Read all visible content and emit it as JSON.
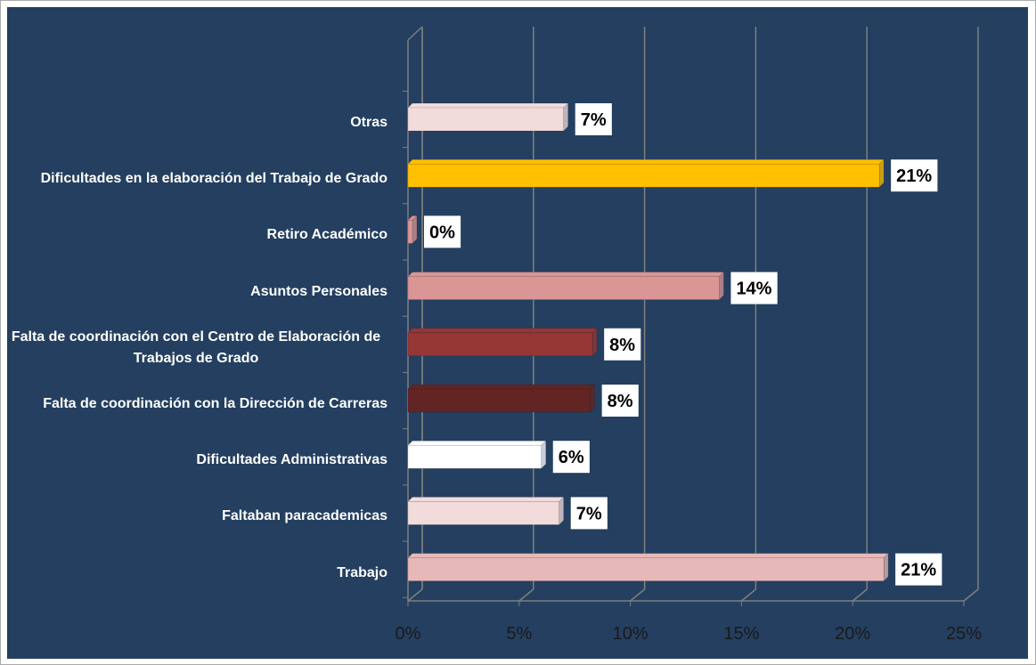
{
  "chart_data": {
    "type": "bar",
    "orientation": "horizontal",
    "categories": [
      "Otras",
      "Dificultades en la elaboración del Trabajo de Grado",
      "Retiro Académico",
      "Asuntos Personales",
      "Falta de coordinación con el Centro de Elaboración de Trabajos de Grado",
      "Falta de coordinación con la Dirección de Carreras",
      "Dificultades Administrativas",
      "Faltaban paracademicas",
      "Trabajo"
    ],
    "values": [
      7,
      21.2,
      0.2,
      14,
      8.3,
      8.2,
      6,
      6.8,
      21.4
    ],
    "value_labels": [
      "7%",
      "21%",
      "0%",
      "14%",
      "8%",
      "8%",
      "6%",
      "7%",
      "21%"
    ],
    "colors": [
      "#f2dcdb",
      "#ffc000",
      "#d99694",
      "#d99694",
      "#953735",
      "#632523",
      "#ffffff",
      "#f2dcdb",
      "#e6b9b8"
    ],
    "xlim": [
      0,
      25
    ],
    "xticks": [
      {
        "value": 0,
        "label": "0%"
      },
      {
        "value": 5,
        "label": "5%"
      },
      {
        "value": 10,
        "label": "10%"
      },
      {
        "value": 15,
        "label": "15%"
      },
      {
        "value": 20,
        "label": "20%"
      },
      {
        "value": 25,
        "label": "25%"
      }
    ],
    "grid": true
  }
}
